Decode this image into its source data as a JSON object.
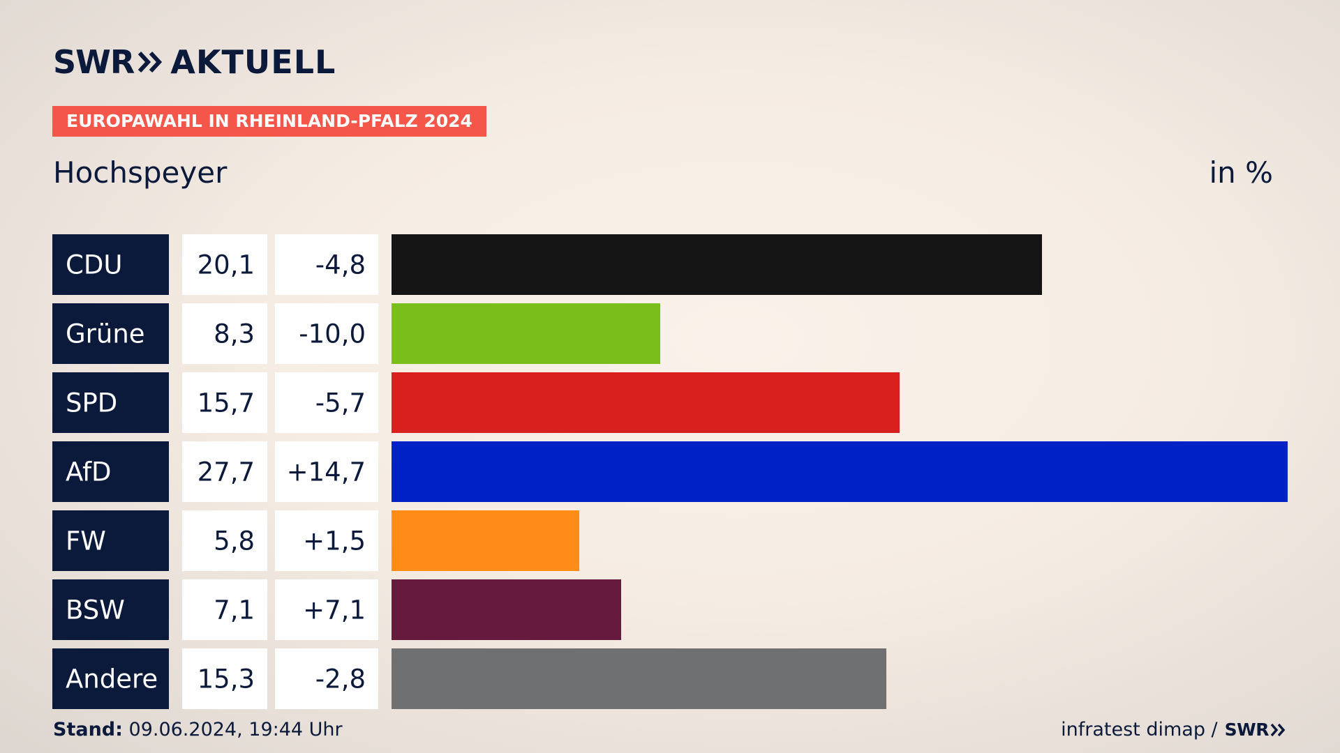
{
  "header": {
    "logo_text_1": "SWR",
    "logo_text_2": "AKTUELL",
    "kicker": "EUROPAWAHL IN RHEINLAND-PFALZ 2024",
    "subtitle": "Hochspeyer",
    "unit": "in %"
  },
  "footer": {
    "stand_label": "Stand:",
    "stand_value": "09.06.2024, 19:44 Uhr",
    "source": "infratest dimap /",
    "brand": "SWR"
  },
  "colors": {
    "label_bg": "#0b1a3b",
    "cell_bg": "#ffffff",
    "text": "#0b1a3b",
    "accent": "#f5564a"
  },
  "chart_data": {
    "type": "bar",
    "orientation": "horizontal",
    "title": "Hochspeyer",
    "unit": "in %",
    "xlim": [
      0,
      27.7
    ],
    "categories": [
      "CDU",
      "Grüne",
      "SPD",
      "AfD",
      "FW",
      "BSW",
      "Andere"
    ],
    "values": [
      20.1,
      8.3,
      15.7,
      27.7,
      5.8,
      7.1,
      15.3
    ],
    "value_labels": [
      "20,1",
      "8,3",
      "15,7",
      "27,7",
      "5,8",
      "7,1",
      "15,3"
    ],
    "change_labels": [
      "-4,8",
      "-10,0",
      "-5,7",
      "+14,7",
      "+1,5",
      "+7,1",
      "-2,8"
    ],
    "bar_colors": [
      "#141414",
      "#7abe1c",
      "#d8201e",
      "#0021c6",
      "#fe8c16",
      "#661a3e",
      "#6f7072"
    ]
  }
}
